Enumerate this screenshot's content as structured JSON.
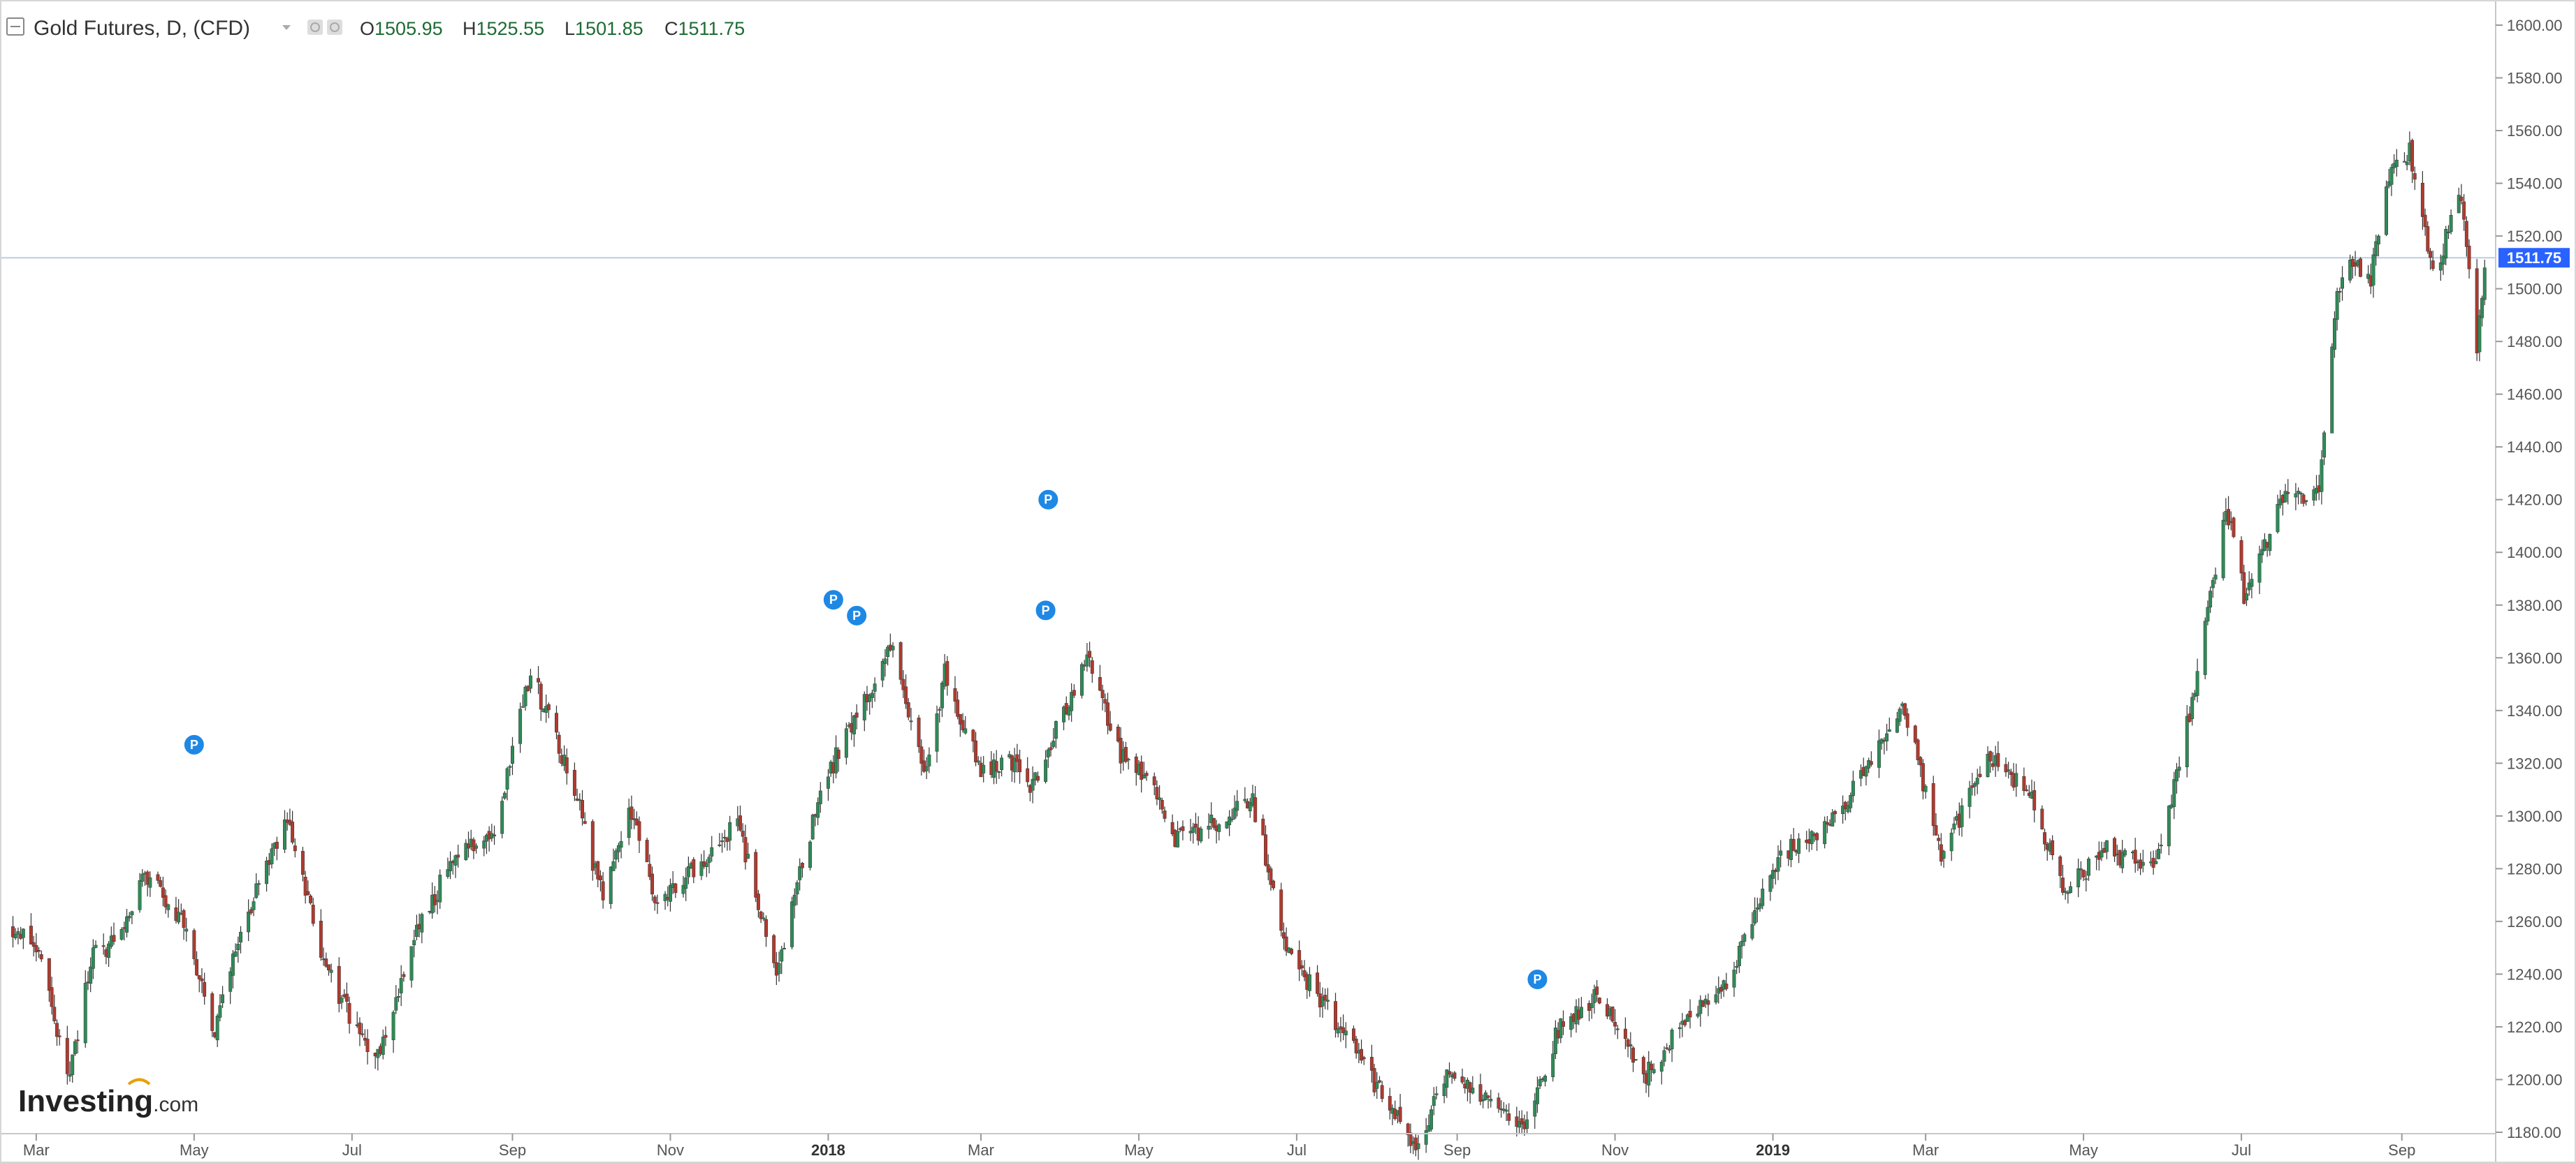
{
  "header": {
    "title": "Gold Futures, D, (CFD)",
    "ohlc": [
      {
        "key": "O",
        "value": "1505.95"
      },
      {
        "key": "H",
        "value": "1525.55"
      },
      {
        "key": "L",
        "value": "1501.85"
      },
      {
        "key": "C",
        "value": "1511.75"
      }
    ]
  },
  "logo": {
    "main": "Investing",
    "sub": ".com"
  },
  "last_price": {
    "label": "1511.75",
    "value": 1511.75
  },
  "colors": {
    "up": "#2e8b57",
    "down": "#b03a2e",
    "price_line": "#b8cde6",
    "price_tag": "#2962ff",
    "marker": "#1e88e5"
  },
  "chart_data": {
    "type": "candlestick",
    "title": "Gold Futures, D, (CFD)",
    "interval": "Daily",
    "x_ticks": [
      {
        "label": "Mar",
        "date": "2017-03"
      },
      {
        "label": "May",
        "date": "2017-05"
      },
      {
        "label": "Jul",
        "date": "2017-07"
      },
      {
        "label": "Sep",
        "date": "2017-09"
      },
      {
        "label": "Nov",
        "date": "2017-11"
      },
      {
        "label": "2018",
        "date": "2018-01",
        "bold": true
      },
      {
        "label": "Mar",
        "date": "2018-03"
      },
      {
        "label": "May",
        "date": "2018-05"
      },
      {
        "label": "Jul",
        "date": "2018-07"
      },
      {
        "label": "Sep",
        "date": "2018-09"
      },
      {
        "label": "Nov",
        "date": "2018-11"
      },
      {
        "label": "2019",
        "date": "2019-01",
        "bold": true
      },
      {
        "label": "Mar",
        "date": "2019-03"
      },
      {
        "label": "May",
        "date": "2019-05"
      },
      {
        "label": "Jul",
        "date": "2019-07"
      },
      {
        "label": "Sep",
        "date": "2019-09"
      }
    ],
    "y_ticks": [
      "1600.00",
      "1580.00",
      "1560.00",
      "1540.00",
      "1520.00",
      "1500.00",
      "1480.00",
      "1460.00",
      "1440.00",
      "1420.00",
      "1400.00",
      "1380.00",
      "1360.00",
      "1340.00",
      "1320.00",
      "1300.00",
      "1280.00",
      "1260.00",
      "1240.00",
      "1220.00",
      "1200.00",
      "1180.00"
    ],
    "ylim": [
      1180,
      1600
    ],
    "xlim": [
      "2017-02-15",
      "2019-10-04"
    ],
    "close_path": [
      {
        "date": "2017-02-20",
        "price": 1258
      },
      {
        "date": "2017-03-01",
        "price": 1250
      },
      {
        "date": "2017-03-14",
        "price": 1200
      },
      {
        "date": "2017-03-22",
        "price": 1246
      },
      {
        "date": "2017-04-03",
        "price": 1253
      },
      {
        "date": "2017-04-12",
        "price": 1278
      },
      {
        "date": "2017-04-25",
        "price": 1263
      },
      {
        "date": "2017-05-09",
        "price": 1217
      },
      {
        "date": "2017-05-18",
        "price": 1255
      },
      {
        "date": "2017-06-06",
        "price": 1298
      },
      {
        "date": "2017-06-20",
        "price": 1244
      },
      {
        "date": "2017-07-10",
        "price": 1205
      },
      {
        "date": "2017-07-25",
        "price": 1255
      },
      {
        "date": "2017-08-10",
        "price": 1285
      },
      {
        "date": "2017-08-25",
        "price": 1295
      },
      {
        "date": "2017-09-08",
        "price": 1355
      },
      {
        "date": "2017-09-25",
        "price": 1310
      },
      {
        "date": "2017-10-06",
        "price": 1268
      },
      {
        "date": "2017-10-16",
        "price": 1305
      },
      {
        "date": "2017-10-27",
        "price": 1267
      },
      {
        "date": "2017-11-10",
        "price": 1280
      },
      {
        "date": "2017-11-27",
        "price": 1297
      },
      {
        "date": "2017-12-12",
        "price": 1240
      },
      {
        "date": "2017-12-29",
        "price": 1310
      },
      {
        "date": "2018-01-12",
        "price": 1338
      },
      {
        "date": "2018-01-25",
        "price": 1365
      },
      {
        "date": "2018-02-08",
        "price": 1315
      },
      {
        "date": "2018-02-15",
        "price": 1355
      },
      {
        "date": "2018-03-01",
        "price": 1317
      },
      {
        "date": "2018-03-12",
        "price": 1322
      },
      {
        "date": "2018-03-20",
        "price": 1310
      },
      {
        "date": "2018-04-11",
        "price": 1360
      },
      {
        "date": "2018-04-24",
        "price": 1323
      },
      {
        "date": "2018-05-04",
        "price": 1315
      },
      {
        "date": "2018-05-15",
        "price": 1290
      },
      {
        "date": "2018-06-14",
        "price": 1305
      },
      {
        "date": "2018-06-28",
        "price": 1248
      },
      {
        "date": "2018-07-19",
        "price": 1218
      },
      {
        "date": "2018-08-16",
        "price": 1173
      },
      {
        "date": "2018-08-28",
        "price": 1205
      },
      {
        "date": "2018-09-14",
        "price": 1190
      },
      {
        "date": "2018-09-27",
        "price": 1182
      },
      {
        "date": "2018-10-11",
        "price": 1222
      },
      {
        "date": "2018-10-26",
        "price": 1232
      },
      {
        "date": "2018-11-12",
        "price": 1200
      },
      {
        "date": "2018-11-26",
        "price": 1220
      },
      {
        "date": "2018-12-14",
        "price": 1238
      },
      {
        "date": "2019-01-04",
        "price": 1285
      },
      {
        "date": "2019-01-25",
        "price": 1298
      },
      {
        "date": "2019-02-20",
        "price": 1344
      },
      {
        "date": "2019-03-07",
        "price": 1285
      },
      {
        "date": "2019-03-25",
        "price": 1322
      },
      {
        "date": "2019-04-10",
        "price": 1310
      },
      {
        "date": "2019-04-23",
        "price": 1272
      },
      {
        "date": "2019-05-10",
        "price": 1287
      },
      {
        "date": "2019-05-29",
        "price": 1280
      },
      {
        "date": "2019-06-14",
        "price": 1352
      },
      {
        "date": "2019-06-25",
        "price": 1418
      },
      {
        "date": "2019-07-02",
        "price": 1384
      },
      {
        "date": "2019-07-19",
        "price": 1425
      },
      {
        "date": "2019-07-31",
        "price": 1420
      },
      {
        "date": "2019-08-07",
        "price": 1500
      },
      {
        "date": "2019-08-13",
        "price": 1512
      },
      {
        "date": "2019-08-20",
        "price": 1503
      },
      {
        "date": "2019-08-26",
        "price": 1540
      },
      {
        "date": "2019-09-04",
        "price": 1553
      },
      {
        "date": "2019-09-13",
        "price": 1505
      },
      {
        "date": "2019-09-24",
        "price": 1535
      },
      {
        "date": "2019-09-30",
        "price": 1474
      },
      {
        "date": "2019-10-03",
        "price": 1511.75
      }
    ],
    "p_markers": [
      {
        "date": "2017-05-01",
        "price": 1327
      },
      {
        "date": "2018-01-03",
        "price": 1382
      },
      {
        "date": "2018-01-12",
        "price": 1376
      },
      {
        "date": "2018-03-26",
        "price": 1378
      },
      {
        "date": "2018-03-27",
        "price": 1420
      },
      {
        "date": "2018-10-02",
        "price": 1238
      }
    ]
  }
}
